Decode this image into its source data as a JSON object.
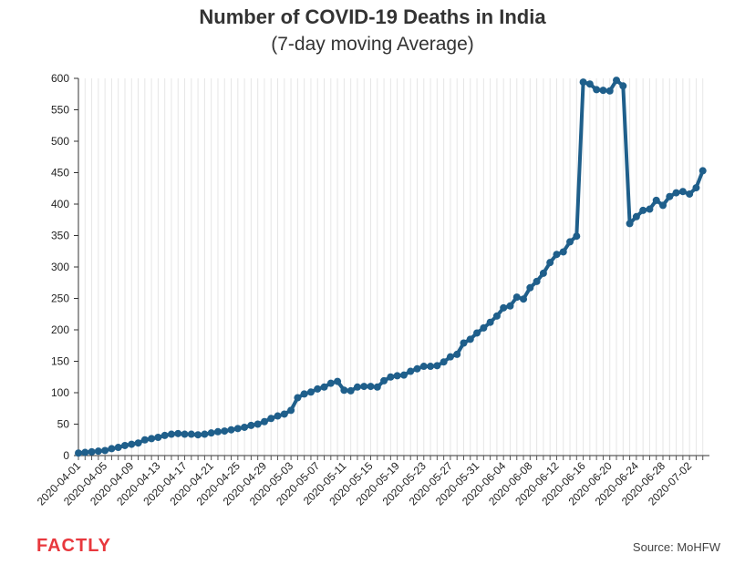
{
  "chart_data": {
    "type": "line",
    "title": "Number of COVID-19 Deaths in India",
    "subtitle": "(7-day moving Average)",
    "xlabel": "",
    "ylabel": "",
    "ylim": [
      0,
      600
    ],
    "yticks": [
      0,
      50,
      100,
      150,
      200,
      250,
      300,
      350,
      400,
      450,
      500,
      550,
      600
    ],
    "x_tick_labels": [
      "2020-04-01",
      "2020-04-05",
      "2020-04-09",
      "2020-04-13",
      "2020-04-17",
      "2020-04-21",
      "2020-04-25",
      "2020-04-29",
      "2020-05-03",
      "2020-05-07",
      "2020-05-11",
      "2020-05-15",
      "2020-05-19",
      "2020-05-23",
      "2020-05-27",
      "2020-05-31",
      "2020-06-04",
      "2020-06-08",
      "2020-06-12",
      "2020-06-16",
      "2020-06-20",
      "2020-06-24",
      "2020-06-28",
      "2020-07-02"
    ],
    "x_start": "2020-04-01",
    "x_end": "2020-07-05",
    "grid": "vertical",
    "line_color": "#1f5f8b",
    "series": [
      {
        "values": [
          4,
          5,
          6,
          7,
          8,
          11,
          13,
          16,
          18,
          20,
          25,
          27,
          29,
          32,
          34,
          35,
          34,
          34,
          33,
          34,
          36,
          38,
          39,
          41,
          43,
          45,
          48,
          50,
          54,
          59,
          63,
          66,
          72,
          92,
          98,
          101,
          106,
          109,
          115,
          118,
          104,
          103,
          109,
          110,
          110,
          109,
          119,
          125,
          127,
          128,
          134,
          138,
          142,
          142,
          143,
          149,
          157,
          161,
          179,
          185,
          195,
          203,
          212,
          222,
          235,
          238,
          252,
          249,
          267,
          277,
          290,
          307,
          320,
          324,
          340,
          349,
          594,
          591,
          582,
          581,
          580,
          597,
          588,
          369,
          380,
          390,
          392,
          406,
          398,
          412,
          418,
          420,
          416,
          426,
          453
        ]
      }
    ]
  },
  "footer": {
    "logo_text": "FACTLY",
    "source": "Source: MoHFW"
  }
}
